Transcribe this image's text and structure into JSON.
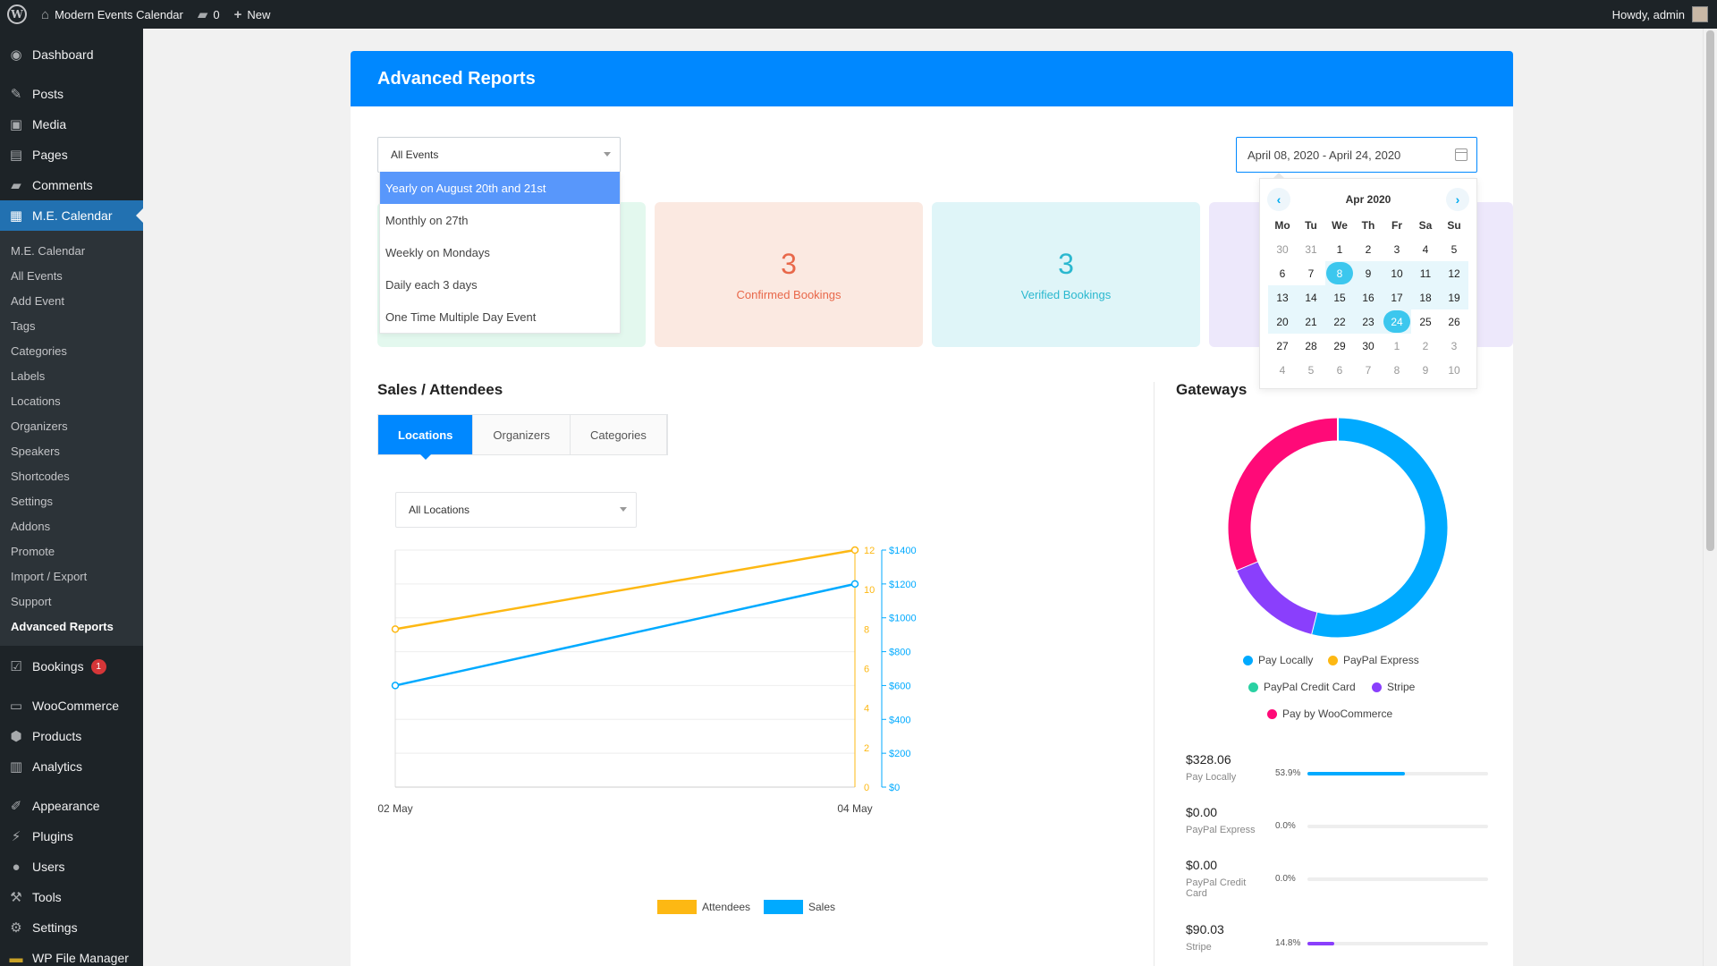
{
  "adminbar": {
    "site_name": "Modern Events Calendar",
    "comments_count": "0",
    "new_label": "New",
    "greeting": "Howdy, admin"
  },
  "sidebar": {
    "dashboard": "Dashboard",
    "posts": "Posts",
    "media": "Media",
    "pages": "Pages",
    "comments": "Comments",
    "me_calendar": "M.E. Calendar",
    "submenu": [
      "M.E. Calendar",
      "All Events",
      "Add Event",
      "Tags",
      "Categories",
      "Labels",
      "Locations",
      "Organizers",
      "Speakers",
      "Shortcodes",
      "Settings",
      "Addons",
      "Promote",
      "Import / Export",
      "Support",
      "Advanced Reports"
    ],
    "bookings": "Bookings",
    "bookings_badge": "1",
    "woocommerce": "WooCommerce",
    "products": "Products",
    "analytics": "Analytics",
    "appearance": "Appearance",
    "plugins": "Plugins",
    "users": "Users",
    "tools": "Tools",
    "settings": "Settings",
    "file_manager": "WP File Manager"
  },
  "panel": {
    "title": "Advanced Reports",
    "events_select": "All Events",
    "event_options": [
      "Yearly on August 20th and 21st",
      "Monthly on 27th",
      "Weekly on Mondays",
      "Daily each 3 days",
      "One Time Multiple Day Event"
    ],
    "date_range": "April 08, 2020 - April 24, 2020"
  },
  "cards": [
    {
      "value": "3",
      "label": "Confirmed Bookings",
      "bg": "#fbe9e1",
      "color": "#e8684a"
    },
    {
      "value": "3",
      "label": "Verified Bookings",
      "bg": "#dff5f8",
      "color": "#2bb8cf"
    }
  ],
  "calendar": {
    "title": "Apr 2020",
    "prev_icon": "chevron-left-icon",
    "next_icon": "chevron-right-icon",
    "dow": [
      "Mo",
      "Tu",
      "We",
      "Th",
      "Fr",
      "Sa",
      "Su"
    ],
    "days": [
      {
        "d": "30",
        "s": "muted"
      },
      {
        "d": "31",
        "s": "muted"
      },
      {
        "d": "1",
        "s": ""
      },
      {
        "d": "2",
        "s": ""
      },
      {
        "d": "3",
        "s": ""
      },
      {
        "d": "4",
        "s": ""
      },
      {
        "d": "5",
        "s": ""
      },
      {
        "d": "6",
        "s": ""
      },
      {
        "d": "7",
        "s": ""
      },
      {
        "d": "8",
        "s": "sel"
      },
      {
        "d": "9",
        "s": "inrange"
      },
      {
        "d": "10",
        "s": "inrange"
      },
      {
        "d": "11",
        "s": "inrange"
      },
      {
        "d": "12",
        "s": "inrange"
      },
      {
        "d": "13",
        "s": "inrange"
      },
      {
        "d": "14",
        "s": "inrange"
      },
      {
        "d": "15",
        "s": "inrange"
      },
      {
        "d": "16",
        "s": "inrange"
      },
      {
        "d": "17",
        "s": "inrange"
      },
      {
        "d": "18",
        "s": "inrange"
      },
      {
        "d": "19",
        "s": "inrange"
      },
      {
        "d": "20",
        "s": "inrange"
      },
      {
        "d": "21",
        "s": "inrange"
      },
      {
        "d": "22",
        "s": "inrange"
      },
      {
        "d": "23",
        "s": "inrange"
      },
      {
        "d": "24",
        "s": "sel"
      },
      {
        "d": "25",
        "s": ""
      },
      {
        "d": "26",
        "s": ""
      },
      {
        "d": "27",
        "s": ""
      },
      {
        "d": "28",
        "s": ""
      },
      {
        "d": "29",
        "s": ""
      },
      {
        "d": "30",
        "s": ""
      },
      {
        "d": "1",
        "s": "muted"
      },
      {
        "d": "2",
        "s": "muted"
      },
      {
        "d": "3",
        "s": "muted"
      },
      {
        "d": "4",
        "s": "muted"
      },
      {
        "d": "5",
        "s": "muted"
      },
      {
        "d": "6",
        "s": "muted"
      },
      {
        "d": "7",
        "s": "muted"
      },
      {
        "d": "8",
        "s": "muted"
      },
      {
        "d": "9",
        "s": "muted"
      },
      {
        "d": "10",
        "s": "muted"
      }
    ]
  },
  "sales": {
    "title": "Sales / Attendees",
    "tabs": [
      "Locations",
      "Organizers",
      "Categories"
    ],
    "locations_select": "All Locations"
  },
  "gateways": {
    "title": "Gateways",
    "legend": [
      {
        "name": "Pay Locally",
        "color": "#00aaff"
      },
      {
        "name": "PayPal Express",
        "color": "#fdb813"
      },
      {
        "name": "PayPal Credit Card",
        "color": "#2ad1a3"
      },
      {
        "name": "Stripe",
        "color": "#8a3ffc"
      },
      {
        "name": "Pay by WooCommerce",
        "color": "#ff0a78"
      }
    ],
    "rows": [
      {
        "amount": "$328.06",
        "name": "Pay Locally",
        "pct": "53.9%",
        "fraction": 0.539,
        "color": "#00aaff"
      },
      {
        "amount": "$0.00",
        "name": "PayPal Express",
        "pct": "0.0%",
        "fraction": 0,
        "color": "#fdb813"
      },
      {
        "amount": "$0.00",
        "name": "PayPal Credit Card",
        "pct": "0.0%",
        "fraction": 0,
        "color": "#2ad1a3"
      },
      {
        "amount": "$90.03",
        "name": "Stripe",
        "pct": "14.8%",
        "fraction": 0.148,
        "color": "#8a3ffc"
      }
    ]
  },
  "chart_data": [
    {
      "type": "line",
      "x": [
        "02 May",
        "04 May"
      ],
      "series": [
        {
          "name": "Attendees",
          "values": [
            8,
            12
          ],
          "axis": "left",
          "color": "#fdb813"
        },
        {
          "name": "Sales",
          "values": [
            600,
            1200
          ],
          "axis": "right",
          "color": "#00aaff"
        }
      ],
      "y_left_ticks": [
        "0",
        "2",
        "4",
        "6",
        "8",
        "10",
        "12"
      ],
      "y_right_ticks": [
        "$0",
        "$200",
        "$400",
        "$600",
        "$800",
        "$1000",
        "$1200",
        "$1400"
      ],
      "ylim_left": [
        0,
        12
      ],
      "ylim_right": [
        0,
        1400
      ],
      "grid": true,
      "legend": "bottom"
    },
    {
      "type": "pie",
      "categories": [
        "Pay Locally",
        "PayPal Express",
        "PayPal Credit Card",
        "Stripe",
        "Pay by WooCommerce"
      ],
      "values": [
        53.9,
        0,
        0,
        14.8,
        31.3
      ],
      "colors": [
        "#00aaff",
        "#fdb813",
        "#2ad1a3",
        "#8a3ffc",
        "#ff0a78"
      ],
      "donut": true,
      "legend": "bottom"
    }
  ]
}
